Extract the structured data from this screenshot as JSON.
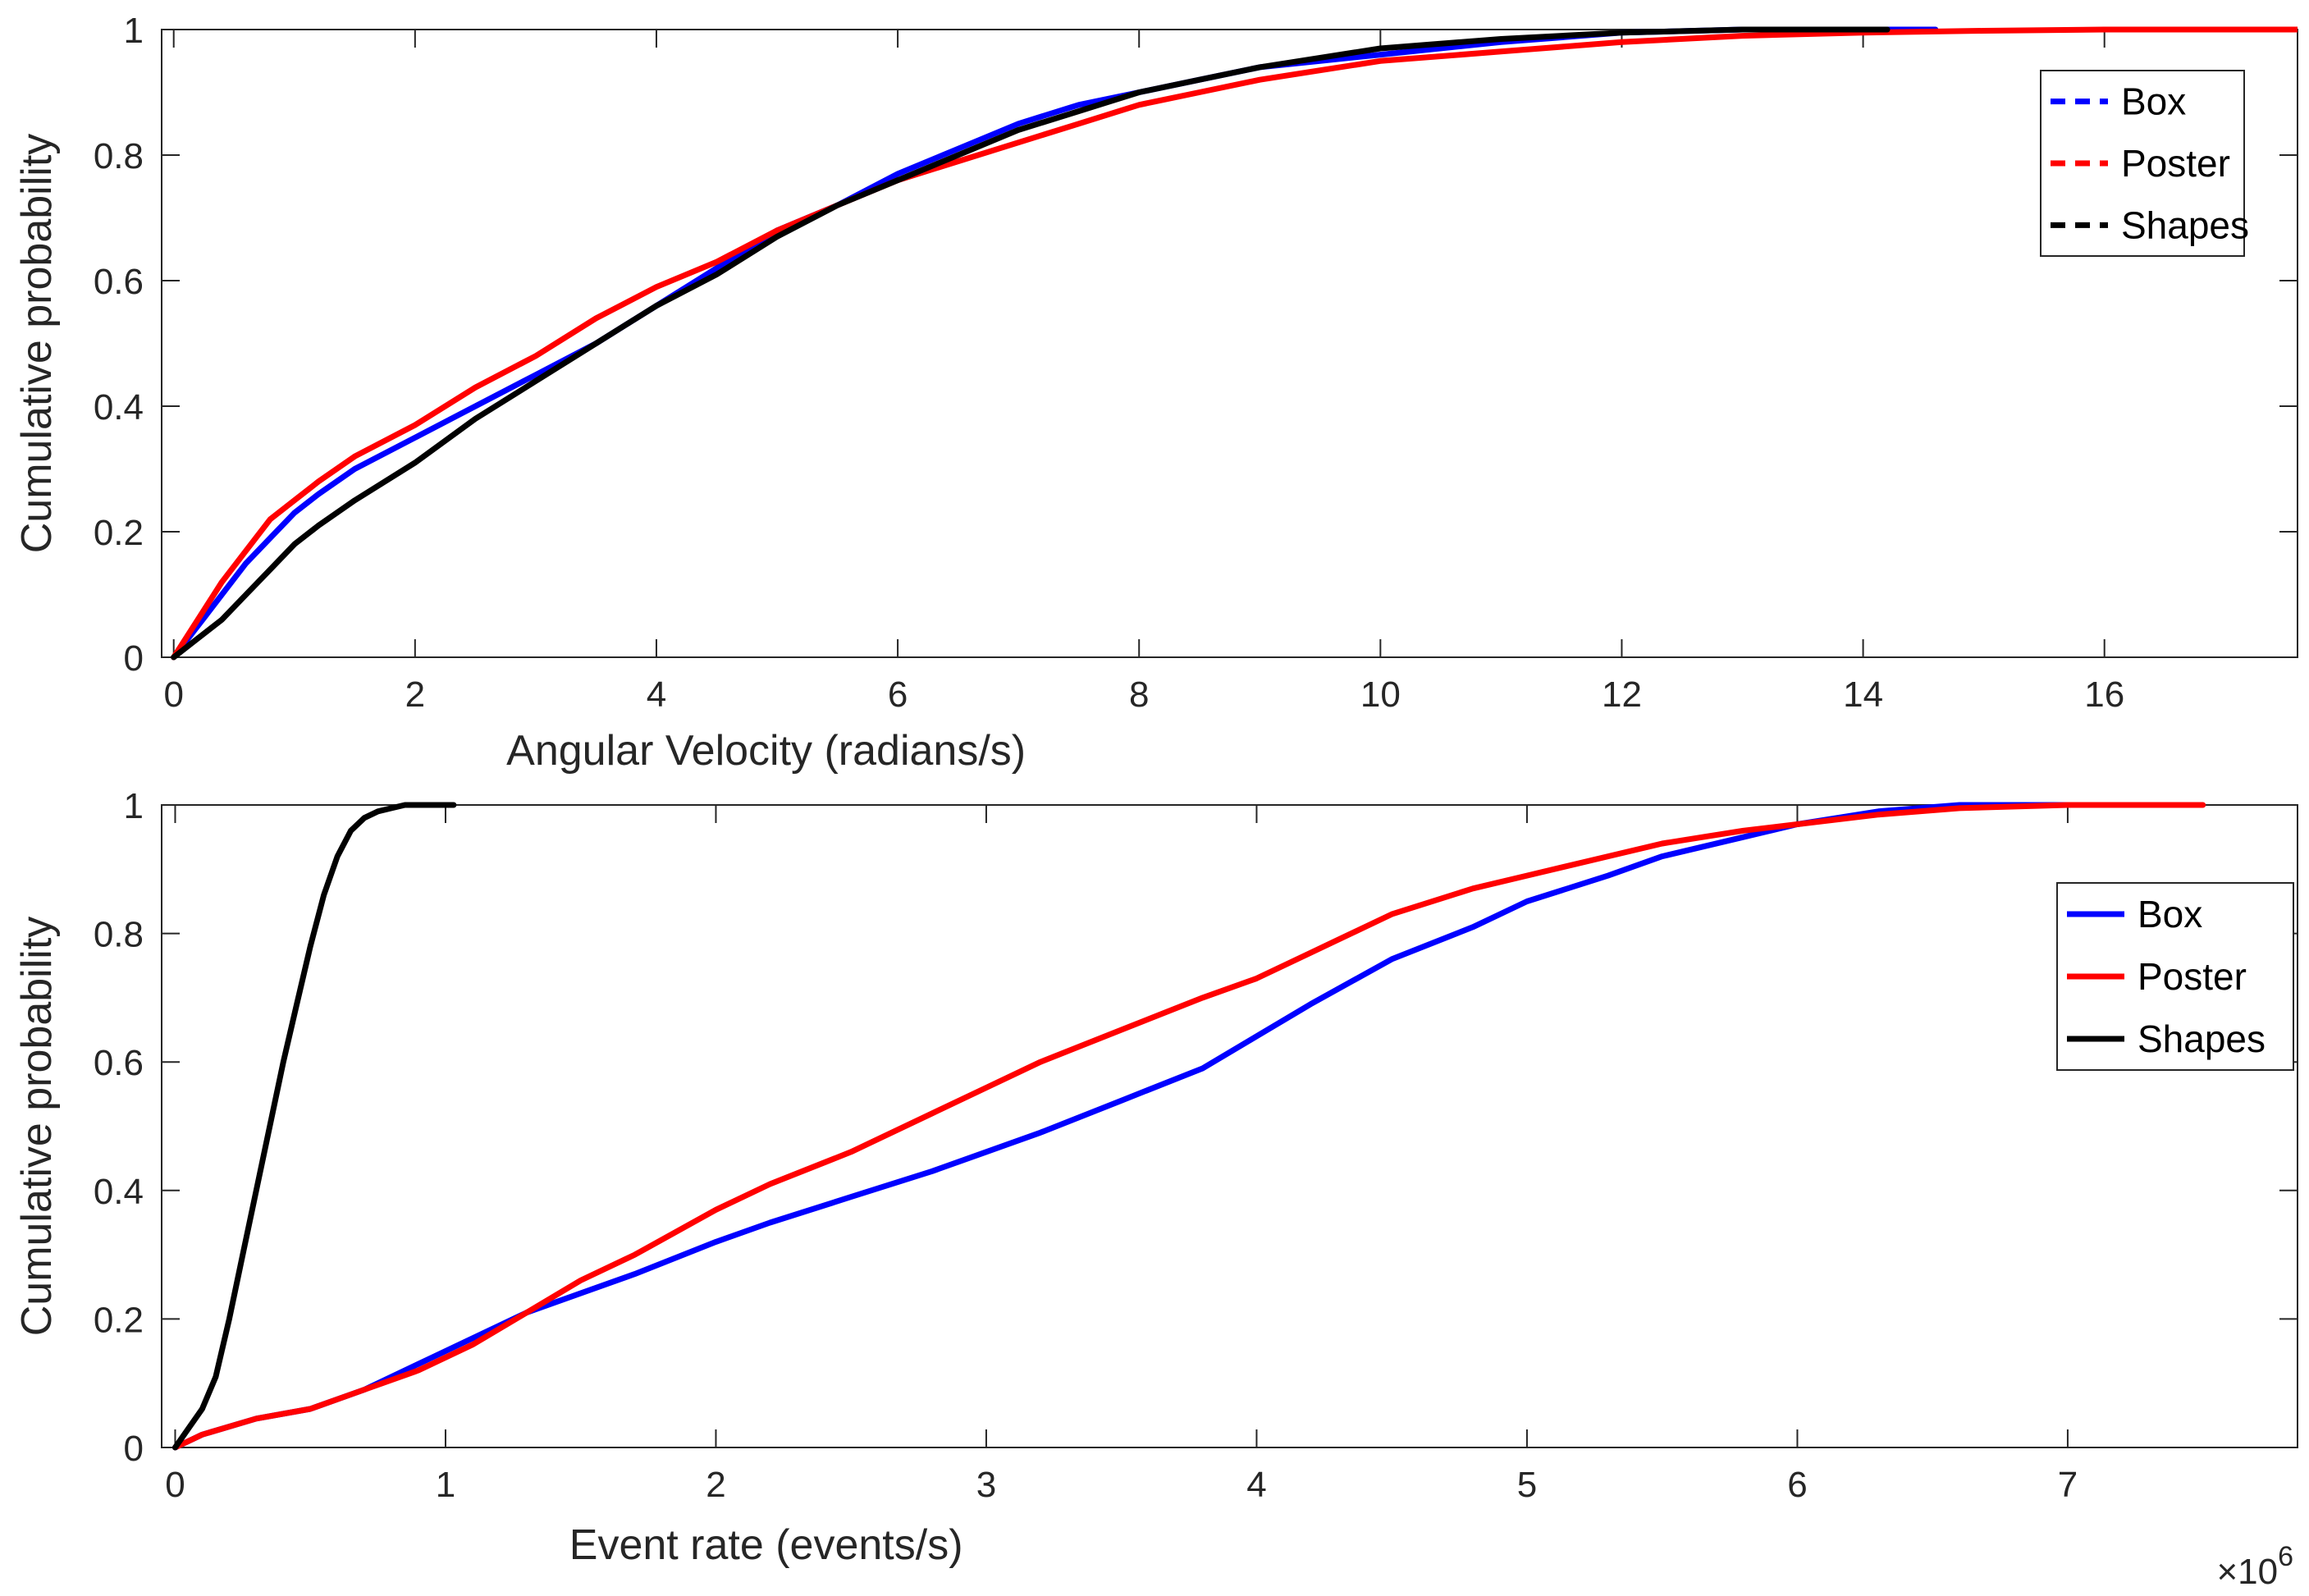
{
  "chart_data": [
    {
      "type": "line",
      "title": "",
      "xlabel": "Angular Velocity (radians/s)",
      "ylabel": "Cumulative probability",
      "xlim": [
        -0.1,
        17.6
      ],
      "ylim": [
        0,
        1
      ],
      "xticks": [
        "0",
        "2",
        "4",
        "6",
        "8",
        "10",
        "12",
        "14",
        "16"
      ],
      "xtick_values": [
        0,
        2,
        4,
        6,
        8,
        10,
        12,
        14,
        16
      ],
      "yticks": [
        "0",
        "0.2",
        "0.4",
        "0.6",
        "0.8",
        "1"
      ],
      "ytick_values": [
        0,
        0.2,
        0.4,
        0.6,
        0.8,
        1
      ],
      "grid": false,
      "legend_position": "top-right",
      "legend_style": "dashed",
      "series": [
        {
          "name": "Box",
          "color": "#0000ff",
          "x": [
            0,
            0.2,
            0.4,
            0.6,
            0.8,
            1.0,
            1.2,
            1.5,
            2.0,
            2.5,
            3.0,
            3.5,
            4.0,
            4.5,
            5.0,
            5.5,
            6.0,
            6.5,
            7.0,
            7.5,
            8.0,
            8.5,
            9.0,
            9.5,
            10.0,
            11.0,
            12.0,
            13.0,
            14.0,
            14.6
          ],
          "y": [
            0,
            0.05,
            0.1,
            0.15,
            0.19,
            0.23,
            0.26,
            0.3,
            0.35,
            0.4,
            0.45,
            0.5,
            0.56,
            0.62,
            0.68,
            0.72,
            0.77,
            0.81,
            0.85,
            0.88,
            0.9,
            0.92,
            0.94,
            0.95,
            0.96,
            0.98,
            0.995,
            1.0,
            1.0,
            1.0
          ]
        },
        {
          "name": "Poster",
          "color": "#ff0000",
          "x": [
            0,
            0.2,
            0.4,
            0.6,
            0.8,
            1.0,
            1.2,
            1.5,
            2.0,
            2.5,
            3.0,
            3.5,
            4.0,
            4.5,
            5.0,
            5.5,
            6.0,
            6.5,
            7.0,
            7.5,
            8.0,
            8.5,
            9.0,
            9.5,
            10.0,
            11.0,
            12.0,
            13.0,
            14.0,
            15.0,
            16.0,
            17.6
          ],
          "y": [
            0,
            0.06,
            0.12,
            0.17,
            0.22,
            0.25,
            0.28,
            0.32,
            0.37,
            0.43,
            0.48,
            0.54,
            0.59,
            0.63,
            0.68,
            0.72,
            0.76,
            0.79,
            0.82,
            0.85,
            0.88,
            0.9,
            0.92,
            0.935,
            0.95,
            0.965,
            0.98,
            0.99,
            0.995,
            0.998,
            1.0,
            1.0
          ]
        },
        {
          "name": "Shapes",
          "color": "#000000",
          "x": [
            0,
            0.2,
            0.4,
            0.6,
            0.8,
            1.0,
            1.2,
            1.5,
            2.0,
            2.5,
            3.0,
            3.5,
            4.0,
            4.5,
            5.0,
            5.5,
            6.0,
            6.5,
            7.0,
            7.5,
            8.0,
            8.5,
            9.0,
            9.5,
            10.0,
            11.0,
            12.0,
            13.0,
            14.2
          ],
          "y": [
            0,
            0.03,
            0.06,
            0.1,
            0.14,
            0.18,
            0.21,
            0.25,
            0.31,
            0.38,
            0.44,
            0.5,
            0.56,
            0.61,
            0.67,
            0.72,
            0.76,
            0.8,
            0.84,
            0.87,
            0.9,
            0.92,
            0.94,
            0.955,
            0.97,
            0.985,
            0.995,
            1.0,
            1.0
          ]
        }
      ]
    },
    {
      "type": "line",
      "title": "",
      "xlabel": "Event rate (events/s)",
      "ylabel": "Cumulative probability",
      "x_exponent_base": "×10",
      "x_exponent_power": "6",
      "xlim": [
        -0.05,
        7.85
      ],
      "ylim": [
        0,
        1
      ],
      "xticks": [
        "0",
        "1",
        "2",
        "3",
        "4",
        "5",
        "6",
        "7"
      ],
      "xtick_values": [
        0,
        1,
        2,
        3,
        4,
        5,
        6,
        7
      ],
      "yticks": [
        "0",
        "0.2",
        "0.4",
        "0.6",
        "0.8",
        "1"
      ],
      "ytick_values": [
        0,
        0.2,
        0.4,
        0.6,
        0.8,
        1
      ],
      "grid": false,
      "legend_position": "top-right",
      "legend_style": "solid",
      "series": [
        {
          "name": "Box",
          "color": "#0000ff",
          "x": [
            0,
            0.1,
            0.3,
            0.5,
            0.7,
            0.9,
            1.1,
            1.3,
            1.5,
            1.7,
            2.0,
            2.2,
            2.5,
            2.8,
            3.0,
            3.2,
            3.5,
            3.8,
            4.0,
            4.2,
            4.5,
            4.8,
            5.0,
            5.3,
            5.5,
            5.8,
            6.0,
            6.3,
            6.6,
            7.0
          ],
          "y": [
            0,
            0.02,
            0.045,
            0.06,
            0.09,
            0.13,
            0.17,
            0.21,
            0.24,
            0.27,
            0.32,
            0.35,
            0.39,
            0.43,
            0.46,
            0.49,
            0.54,
            0.59,
            0.64,
            0.69,
            0.76,
            0.81,
            0.85,
            0.89,
            0.92,
            0.95,
            0.97,
            0.99,
            1.0,
            1.0
          ]
        },
        {
          "name": "Poster",
          "color": "#ff0000",
          "x": [
            0,
            0.1,
            0.3,
            0.5,
            0.7,
            0.9,
            1.1,
            1.3,
            1.5,
            1.7,
            2.0,
            2.2,
            2.5,
            2.8,
            3.0,
            3.2,
            3.5,
            3.8,
            4.0,
            4.2,
            4.5,
            4.8,
            5.0,
            5.3,
            5.5,
            5.8,
            6.0,
            6.3,
            6.6,
            7.0,
            7.5
          ],
          "y": [
            0,
            0.02,
            0.045,
            0.06,
            0.09,
            0.12,
            0.16,
            0.21,
            0.26,
            0.3,
            0.37,
            0.41,
            0.46,
            0.52,
            0.56,
            0.6,
            0.65,
            0.7,
            0.73,
            0.77,
            0.83,
            0.87,
            0.89,
            0.92,
            0.94,
            0.96,
            0.97,
            0.985,
            0.995,
            1.0,
            1.0
          ]
        },
        {
          "name": "Shapes",
          "color": "#000000",
          "x": [
            0,
            0.05,
            0.1,
            0.15,
            0.2,
            0.25,
            0.3,
            0.35,
            0.4,
            0.45,
            0.5,
            0.55,
            0.6,
            0.65,
            0.7,
            0.75,
            0.8,
            0.85,
            0.9,
            0.95,
            1.03
          ],
          "y": [
            0,
            0.03,
            0.06,
            0.11,
            0.2,
            0.3,
            0.4,
            0.5,
            0.6,
            0.69,
            0.78,
            0.86,
            0.92,
            0.96,
            0.98,
            0.99,
            0.995,
            1.0,
            1.0,
            1.0,
            1.0
          ]
        }
      ]
    }
  ]
}
